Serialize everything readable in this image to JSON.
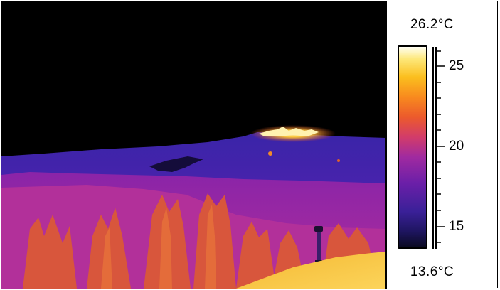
{
  "image": {
    "kind": "thermal-camera-capture",
    "palette": "iron",
    "subject": "mountain ridge with fire at night"
  },
  "scale": {
    "max_label": "26.2°C",
    "min_label": "13.6°C",
    "ticks": [
      "25",
      "20",
      "15"
    ]
  },
  "colors": {
    "frame": "#000000",
    "panel_bg": "#ffffff",
    "sky": "#000000"
  }
}
